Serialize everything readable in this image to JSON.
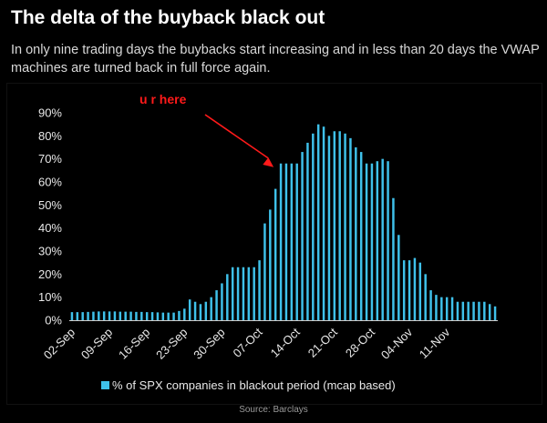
{
  "header": {
    "title": "The delta of the buyback black out",
    "subtitle": "In only nine trading days the buybacks start increasing and in less than 20 days the VWAP machines are turned back in full force again."
  },
  "source": "Source: Barclays",
  "chart_data": {
    "type": "bar",
    "title": "",
    "xlabel": "",
    "ylabel": "",
    "ylim": [
      0,
      90
    ],
    "yticks": [
      "0%",
      "10%",
      "20%",
      "30%",
      "40%",
      "50%",
      "60%",
      "70%",
      "80%",
      "90%"
    ],
    "xtick_labels": [
      {
        "label": "02-Sep",
        "index": 0
      },
      {
        "label": "09-Sep",
        "index": 7
      },
      {
        "label": "16-Sep",
        "index": 14
      },
      {
        "label": "23-Sep",
        "index": 21
      },
      {
        "label": "30-Sep",
        "index": 28
      },
      {
        "label": "07-Oct",
        "index": 35
      },
      {
        "label": "14-Oct",
        "index": 42
      },
      {
        "label": "21-Oct",
        "index": 49
      },
      {
        "label": "28-Oct",
        "index": 56
      },
      {
        "label": "04-Nov",
        "index": 63
      },
      {
        "label": "11-Nov",
        "index": 70
      }
    ],
    "series": [
      {
        "name": "% of SPX companies in blackout period (mcap based)",
        "color": "#3fc1ea",
        "values": [
          3.5,
          3.5,
          3.5,
          3.6,
          3.7,
          3.8,
          3.8,
          3.8,
          3.8,
          3.7,
          3.7,
          3.7,
          3.6,
          3.6,
          3.5,
          3.5,
          3.4,
          3.3,
          3.3,
          3.3,
          4,
          5,
          9,
          8,
          7,
          8,
          10,
          13,
          16,
          20,
          23,
          23,
          23,
          23,
          23,
          26,
          42,
          48,
          57,
          68,
          68,
          68,
          68,
          73,
          77,
          81,
          85,
          84,
          80,
          82,
          82,
          81,
          79,
          75,
          73,
          68,
          68,
          69,
          70,
          69,
          53,
          37,
          26,
          26,
          27,
          25,
          20,
          13,
          11,
          10,
          10,
          10,
          8,
          8,
          8,
          8,
          8,
          8,
          7,
          6
        ]
      }
    ],
    "grid": false,
    "legend_position": "bottom",
    "annotations": [
      {
        "text": "u r here",
        "color": "#ff1a1a",
        "points_to_index": 39
      }
    ]
  }
}
